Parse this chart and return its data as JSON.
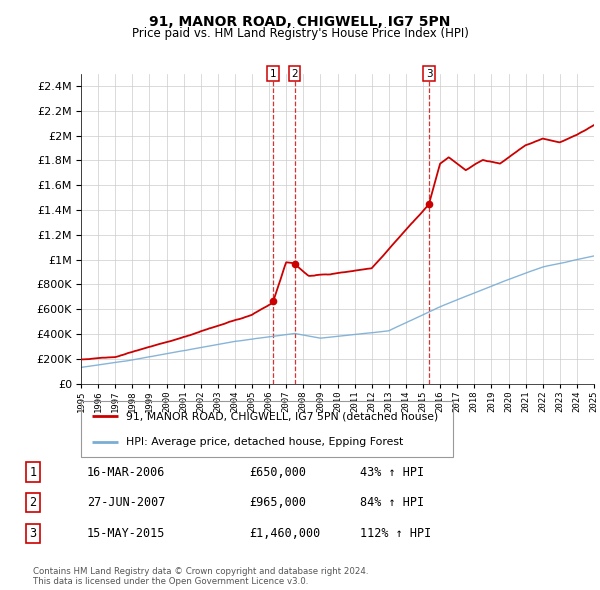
{
  "title": "91, MANOR ROAD, CHIGWELL, IG7 5PN",
  "subtitle": "Price paid vs. HM Land Registry's House Price Index (HPI)",
  "yticks": [
    0,
    200000,
    400000,
    600000,
    800000,
    1000000,
    1200000,
    1400000,
    1600000,
    1800000,
    2000000,
    2200000,
    2400000
  ],
  "ylim": [
    0,
    2500000
  ],
  "hpi_color": "#7aadd4",
  "price_color": "#cc0000",
  "background_color": "#ffffff",
  "grid_color": "#cccccc",
  "sale_events": [
    {
      "label": "1",
      "date": "16-MAR-2006",
      "price": "£650,000",
      "pct": "43%",
      "x_year": 2006.21
    },
    {
      "label": "2",
      "date": "27-JUN-2007",
      "price": "£965,000",
      "pct": "84%",
      "x_year": 2007.49
    },
    {
      "label": "3",
      "date": "15-MAY-2015",
      "price": "£1,460,000",
      "pct": "112%",
      "x_year": 2015.37
    }
  ],
  "legend_property_label": "91, MANOR ROAD, CHIGWELL, IG7 5PN (detached house)",
  "legend_hpi_label": "HPI: Average price, detached house, Epping Forest",
  "footer1": "Contains HM Land Registry data © Crown copyright and database right 2024.",
  "footer2": "This data is licensed under the Open Government Licence v3.0.",
  "xtick_years": [
    1995,
    1996,
    1997,
    1998,
    1999,
    2000,
    2001,
    2002,
    2003,
    2004,
    2005,
    2006,
    2007,
    2008,
    2009,
    2010,
    2011,
    2012,
    2013,
    2014,
    2015,
    2016,
    2017,
    2018,
    2019,
    2020,
    2021,
    2022,
    2023,
    2024,
    2025
  ]
}
